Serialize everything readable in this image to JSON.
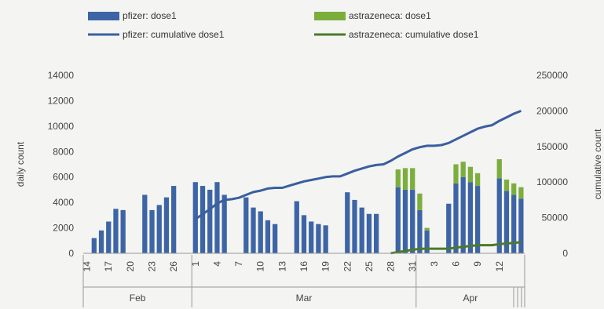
{
  "chart_data": {
    "type": "bar",
    "colors": {
      "pfizer": "#3d65a6",
      "astrazeneca": "#7cae3d",
      "pfizer_line": "#3a5f9f",
      "astrazeneca_line": "#4a7a2a",
      "axis": "#999999"
    },
    "legend": [
      {
        "key": "pfizer_bar",
        "label": "pfizer: dose1"
      },
      {
        "key": "az_bar",
        "label": "astrazeneca: dose1"
      },
      {
        "key": "pfizer_line",
        "label": "pfizer: cumulative dose1"
      },
      {
        "key": "az_line",
        "label": "astrazeneca: cumulative dose1"
      }
    ],
    "ylabel": "daily count",
    "y2label": "cumulative count",
    "ylim": [
      0,
      14000
    ],
    "y2lim": [
      0,
      250000
    ],
    "yticks": [
      0,
      2000,
      4000,
      6000,
      8000,
      10000,
      12000,
      14000
    ],
    "y2ticks": [
      0,
      50000,
      100000,
      150000,
      200000,
      250000
    ],
    "x_start": "2021-02-14",
    "x_days": 61,
    "xtick_labels": [
      {
        "day": 0,
        "label": "14"
      },
      {
        "day": 3,
        "label": "17"
      },
      {
        "day": 6,
        "label": "20"
      },
      {
        "day": 9,
        "label": "23"
      },
      {
        "day": 12,
        "label": "26"
      },
      {
        "day": 15,
        "label": "1"
      },
      {
        "day": 18,
        "label": "4"
      },
      {
        "day": 21,
        "label": "7"
      },
      {
        "day": 24,
        "label": "10"
      },
      {
        "day": 27,
        "label": "13"
      },
      {
        "day": 30,
        "label": "16"
      },
      {
        "day": 33,
        "label": "19"
      },
      {
        "day": 36,
        "label": "22"
      },
      {
        "day": 39,
        "label": "25"
      },
      {
        "day": 42,
        "label": "28"
      },
      {
        "day": 45,
        "label": "31"
      },
      {
        "day": 48,
        "label": "3"
      },
      {
        "day": 51,
        "label": "6"
      },
      {
        "day": 54,
        "label": "9"
      },
      {
        "day": 57,
        "label": "12"
      }
    ],
    "months": [
      {
        "label": "Feb",
        "start": 0,
        "end": 15
      },
      {
        "label": "Mar",
        "start": 15,
        "end": 46
      },
      {
        "label": "Apr",
        "start": 46,
        "end": 61
      }
    ],
    "series": [
      {
        "name": "pfizer: dose1",
        "kind": "bar",
        "values": [
          0,
          1200,
          1800,
          2500,
          3500,
          3400,
          0,
          0,
          4600,
          3400,
          3800,
          4400,
          5300,
          0,
          0,
          5600,
          5300,
          5000,
          5600,
          4600,
          0,
          0,
          4400,
          3600,
          3300,
          2600,
          2300,
          0,
          0,
          4100,
          3000,
          2500,
          2300,
          2200,
          0,
          0,
          4800,
          4200,
          3600,
          3100,
          3100,
          0,
          0,
          5200,
          5000,
          5000,
          3400,
          1800,
          0,
          0,
          3900,
          5500,
          6000,
          5600,
          5300,
          0,
          0,
          5900,
          4900,
          4600,
          4300
        ]
      },
      {
        "name": "astrazeneca: dose1",
        "kind": "bar",
        "values": [
          0,
          0,
          0,
          0,
          0,
          0,
          0,
          0,
          0,
          0,
          0,
          0,
          0,
          0,
          0,
          0,
          0,
          0,
          0,
          0,
          0,
          0,
          0,
          0,
          0,
          0,
          0,
          0,
          0,
          0,
          0,
          0,
          0,
          0,
          0,
          0,
          0,
          0,
          0,
          0,
          0,
          0,
          0,
          1400,
          1700,
          1700,
          1300,
          200,
          0,
          0,
          0,
          1500,
          1200,
          1200,
          1000,
          0,
          0,
          1500,
          900,
          900,
          900
        ]
      },
      {
        "name": "pfizer: cumulative dose1",
        "kind": "line",
        "points": [
          [
            15,
            48000
          ],
          [
            16,
            55000
          ],
          [
            17,
            62000
          ],
          [
            18,
            70000
          ],
          [
            19,
            75000
          ],
          [
            20,
            76000
          ],
          [
            21,
            78000
          ],
          [
            22,
            82000
          ],
          [
            23,
            86000
          ],
          [
            24,
            88000
          ],
          [
            25,
            91000
          ],
          [
            26,
            92000
          ],
          [
            27,
            92000
          ],
          [
            28,
            95000
          ],
          [
            29,
            98000
          ],
          [
            30,
            101000
          ],
          [
            31,
            103000
          ],
          [
            32,
            105000
          ],
          [
            33,
            107000
          ],
          [
            34,
            108000
          ],
          [
            35,
            108000
          ],
          [
            36,
            112000
          ],
          [
            37,
            116000
          ],
          [
            38,
            119000
          ],
          [
            39,
            122000
          ],
          [
            40,
            124000
          ],
          [
            41,
            125000
          ],
          [
            42,
            130000
          ],
          [
            43,
            136000
          ],
          [
            44,
            141000
          ],
          [
            45,
            146000
          ],
          [
            46,
            149000
          ],
          [
            47,
            151000
          ],
          [
            48,
            151000
          ],
          [
            49,
            152000
          ],
          [
            50,
            155000
          ],
          [
            51,
            160000
          ],
          [
            52,
            165000
          ],
          [
            53,
            170000
          ],
          [
            54,
            175000
          ],
          [
            55,
            178000
          ],
          [
            56,
            180000
          ],
          [
            57,
            186000
          ],
          [
            58,
            191000
          ],
          [
            59,
            196000
          ],
          [
            60,
            200000
          ]
        ]
      },
      {
        "name": "astrazeneca: cumulative dose1",
        "kind": "line",
        "points": [
          [
            42,
            200
          ],
          [
            43,
            1600
          ],
          [
            44,
            3300
          ],
          [
            45,
            5000
          ],
          [
            46,
            6300
          ],
          [
            47,
            6500
          ],
          [
            48,
            6500
          ],
          [
            49,
            6500
          ],
          [
            50,
            6500
          ],
          [
            51,
            8000
          ],
          [
            52,
            9200
          ],
          [
            53,
            10400
          ],
          [
            54,
            11400
          ],
          [
            55,
            11400
          ],
          [
            56,
            11400
          ],
          [
            57,
            12900
          ],
          [
            58,
            13800
          ],
          [
            59,
            14700
          ],
          [
            60,
            15600
          ]
        ]
      }
    ]
  }
}
